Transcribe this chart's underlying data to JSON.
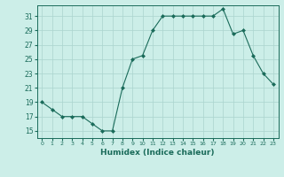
{
  "x": [
    0,
    1,
    2,
    3,
    4,
    5,
    6,
    7,
    8,
    9,
    10,
    11,
    12,
    13,
    14,
    15,
    16,
    17,
    18,
    19,
    20,
    21,
    22,
    23
  ],
  "y": [
    19,
    18,
    17,
    17,
    17,
    16,
    15,
    15,
    21,
    25,
    25.5,
    29,
    31,
    31,
    31,
    31,
    31,
    31,
    32,
    28.5,
    29,
    25.5,
    23,
    21.5
  ],
  "xlim": [
    -0.5,
    23.5
  ],
  "ylim": [
    14,
    32.5
  ],
  "yticks": [
    15,
    17,
    19,
    21,
    23,
    25,
    27,
    29,
    31
  ],
  "xticks": [
    0,
    1,
    2,
    3,
    4,
    5,
    6,
    7,
    8,
    9,
    10,
    11,
    12,
    13,
    14,
    15,
    16,
    17,
    18,
    19,
    20,
    21,
    22,
    23
  ],
  "xlabel": "Humidex (Indice chaleur)",
  "line_color": "#1a6b5a",
  "marker": "D",
  "marker_size": 2,
  "bg_color": "#cceee8",
  "grid_color": "#aad4ce",
  "tick_color": "#1a6b5a",
  "label_color": "#1a6b5a"
}
